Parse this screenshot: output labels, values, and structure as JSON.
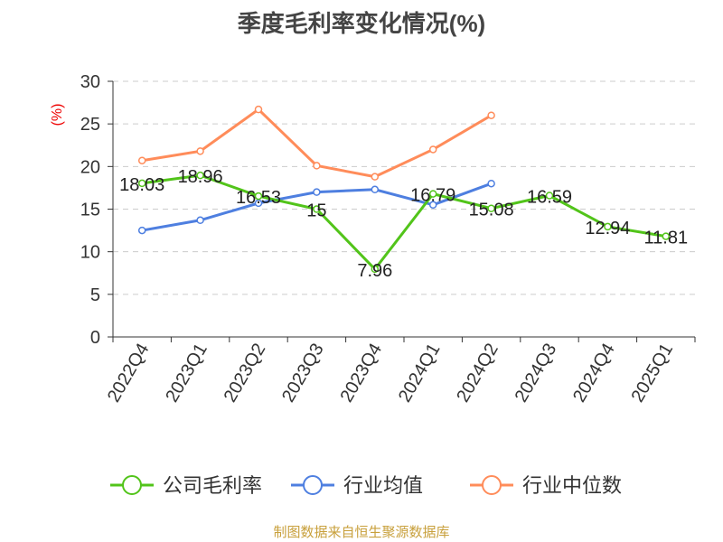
{
  "chart_data": {
    "type": "line",
    "title": "季度毛利率变化情况(%)",
    "ylabel": "(%)",
    "ylim": [
      0,
      30
    ],
    "yticks": [
      0,
      5,
      10,
      15,
      20,
      25,
      30
    ],
    "categories": [
      "2022Q4",
      "2023Q1",
      "2023Q2",
      "2023Q3",
      "2023Q4",
      "2024Q1",
      "2024Q2",
      "2024Q3",
      "2024Q4",
      "2025Q1"
    ],
    "grid": true,
    "legend_position": "bottom",
    "series": [
      {
        "name": "公司毛利率",
        "color": "#52c41a",
        "values": [
          18.03,
          18.96,
          16.53,
          15,
          7.96,
          16.79,
          15.08,
          16.59,
          12.94,
          11.81
        ],
        "labels": [
          "18.03",
          "18.96",
          "16.53",
          "15",
          "7.96",
          "16.79",
          "15.08",
          "16.59",
          "12.94",
          "11.81"
        ]
      },
      {
        "name": "行业均值",
        "color": "#4e7fe0",
        "values": [
          12.5,
          13.7,
          15.7,
          17.0,
          17.3,
          15.5,
          18.0,
          null,
          null,
          null
        ]
      },
      {
        "name": "行业中位数",
        "color": "#ff8c5a",
        "values": [
          20.7,
          21.8,
          26.7,
          20.1,
          18.8,
          22.0,
          26.0,
          null,
          null,
          null
        ]
      }
    ]
  },
  "source": "制图数据来自恒生聚源数据库"
}
